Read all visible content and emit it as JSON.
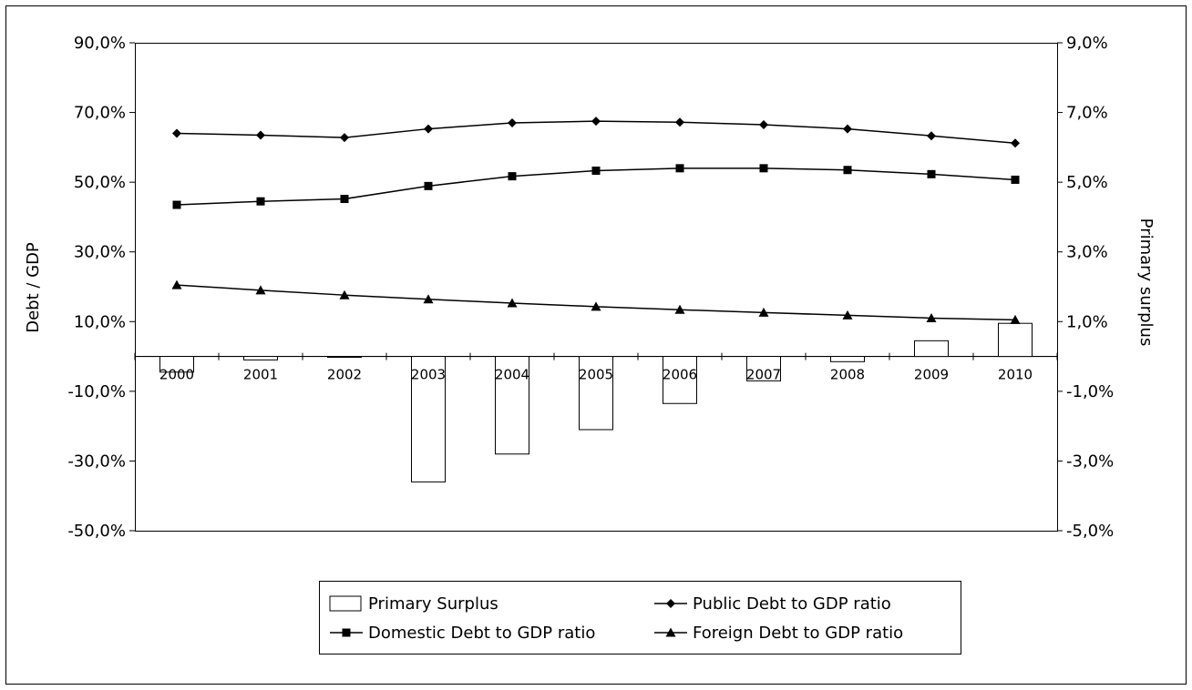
{
  "chart_data": {
    "type": "bar+line",
    "categories": [
      "2000",
      "2001",
      "2002",
      "2003",
      "2004",
      "2005",
      "2006",
      "2007",
      "2008",
      "2009",
      "2010"
    ],
    "left_axis": {
      "label": "Debt / GDP",
      "ylim": [
        -50,
        90
      ],
      "ticks": [
        "-50,0%",
        "-30,0%",
        "-10,0%",
        "10,0%",
        "30,0%",
        "50,0%",
        "70,0%",
        "90,0%"
      ]
    },
    "right_axis": {
      "label": "Primary surplus",
      "ylim": [
        -5,
        9
      ],
      "ticks": [
        "-5,0%",
        "-3,0%",
        "-1,0%",
        "1,0%",
        "3,0%",
        "5,0%",
        "7,0%",
        "9,0%"
      ]
    },
    "series": [
      {
        "name": "Primary Surplus",
        "type": "bar",
        "axis": "right",
        "marker": "box",
        "values": [
          -0.45,
          -0.1,
          0.0,
          -3.6,
          -2.8,
          -2.1,
          -1.35,
          -0.7,
          -0.15,
          0.45,
          0.95
        ]
      },
      {
        "name": "Public Debt to GDP ratio",
        "type": "line",
        "axis": "left",
        "marker": "diamond",
        "values": [
          64.0,
          63.5,
          62.8,
          65.3,
          67.0,
          67.5,
          67.2,
          66.5,
          65.3,
          63.3,
          61.2
        ]
      },
      {
        "name": "Domestic Debt to GDP ratio",
        "type": "line",
        "axis": "left",
        "marker": "square",
        "values": [
          43.5,
          44.5,
          45.2,
          48.9,
          51.7,
          53.3,
          54.0,
          54.0,
          53.5,
          52.3,
          50.7
        ]
      },
      {
        "name": "Foreign Debt to GDP ratio",
        "type": "line",
        "axis": "left",
        "marker": "triangle",
        "values": [
          20.5,
          19.0,
          17.6,
          16.4,
          15.3,
          14.3,
          13.4,
          12.6,
          11.8,
          11.0,
          10.5
        ]
      }
    ],
    "legend_position": "bottom",
    "grid": false
  }
}
